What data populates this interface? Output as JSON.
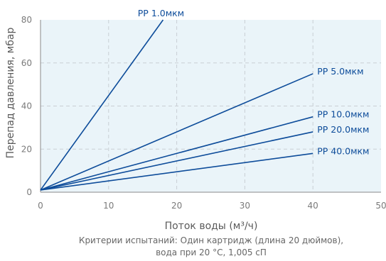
{
  "chart_data": {
    "type": "line",
    "xlabel": "Поток воды (м³/ч)",
    "ylabel": "Перепад давления, мбар",
    "xlim": [
      0,
      50
    ],
    "ylim": [
      0,
      80
    ],
    "x_ticks": [
      "0",
      "10",
      "20",
      "30",
      "40",
      "50"
    ],
    "y_ticks": [
      "0",
      "20",
      "40",
      "60",
      "80"
    ],
    "grid": true,
    "series": [
      {
        "name": "PP 1.0мкм",
        "points": [
          [
            0,
            1
          ],
          [
            18,
            80
          ]
        ]
      },
      {
        "name": "PP 5.0мкм",
        "points": [
          [
            0,
            1
          ],
          [
            40,
            55
          ]
        ]
      },
      {
        "name": "PP 10.0мкм",
        "points": [
          [
            0,
            1
          ],
          [
            40,
            35
          ]
        ]
      },
      {
        "name": "PP 20.0мкм",
        "points": [
          [
            0,
            1
          ],
          [
            40,
            28
          ]
        ]
      },
      {
        "name": "PP 40.0мкм",
        "points": [
          [
            0,
            1
          ],
          [
            40,
            18
          ]
        ]
      }
    ],
    "caption_lines": [
      "Критерии испытаний: Один картридж (длина 20 дюймов),",
      "вода при 20 °C, 1,005 сП"
    ]
  },
  "colors": {
    "plot_bg": "#eaf4f9",
    "line": "#0d4c9a",
    "grid": "#c9cfd4",
    "axis": "#8a8a8a"
  }
}
